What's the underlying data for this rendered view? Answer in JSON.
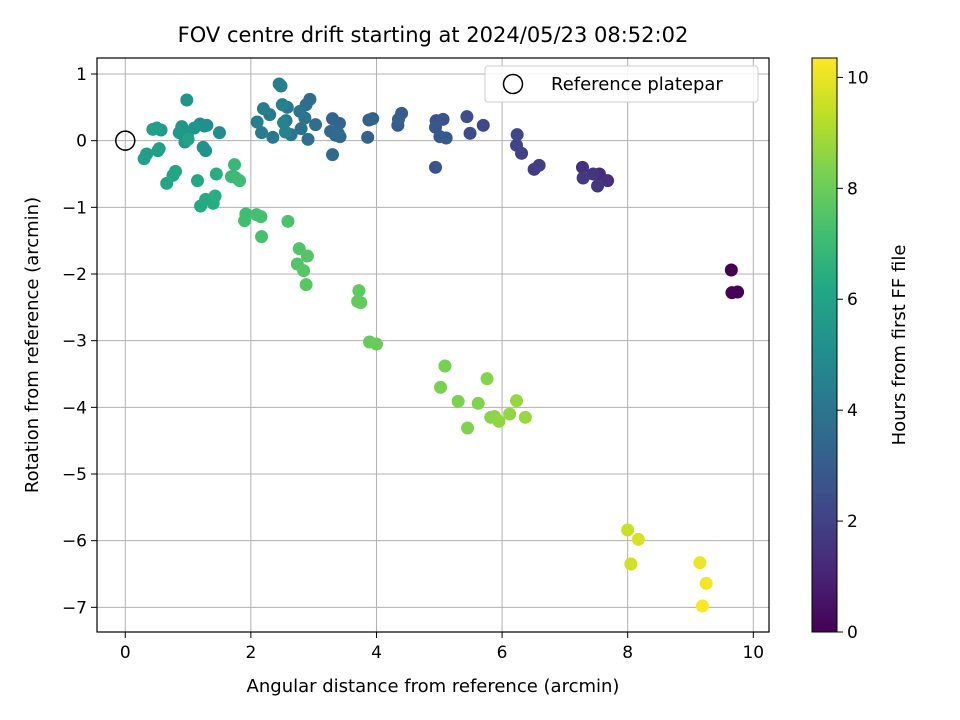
{
  "chart_data": {
    "type": "scatter",
    "title": "FOV centre drift starting at 2024/05/23 08:52:02",
    "xlabel": "Angular distance from reference (arcmin)",
    "ylabel": "Rotation from reference (arcmin)",
    "xlim": [
      -0.45,
      10.25
    ],
    "ylim": [
      -7.37,
      1.24
    ],
    "x_ticks": [
      0,
      2,
      4,
      6,
      8,
      10
    ],
    "y_ticks": [
      1,
      0,
      -1,
      -2,
      -3,
      -4,
      -5,
      -6,
      -7
    ],
    "x_tick_labels": [
      "0",
      "2",
      "4",
      "6",
      "8",
      "10"
    ],
    "y_tick_labels": [
      "1",
      "0",
      "−1",
      "−2",
      "−3",
      "−4",
      "−5",
      "−6",
      "−7"
    ],
    "grid": true,
    "legend": {
      "position": "top-right",
      "entries": [
        "Reference platepar"
      ]
    },
    "reference_point": {
      "x": 0,
      "y": 0,
      "label": "Reference platepar"
    },
    "colorbar": {
      "label": "Hours from first FF file",
      "colormap": "viridis",
      "range": [
        0,
        10.35
      ],
      "ticks": [
        0,
        2,
        4,
        6,
        8,
        10
      ],
      "tick_labels": [
        "0",
        "2",
        "4",
        "6",
        "8",
        "10"
      ]
    },
    "series": [
      {
        "x": [
          9.65,
          9.75,
          9.66,
          7.55,
          7.68,
          7.28,
          7.45,
          7.52,
          7.29,
          6.51,
          6.59,
          6.31,
          6.23,
          6.24,
          5.7,
          5.49,
          5.44,
          4.95,
          5.06,
          4.94,
          4.94,
          5.01,
          5.11,
          4.34,
          4.4,
          4.35,
          3.88,
          3.86,
          3.94,
          3.3,
          3.41,
          3.42,
          3.35,
          3.27,
          3.39,
          3.3,
          2.94,
          2.88,
          3.03,
          2.91,
          2.8,
          2.86,
          2.78,
          2.64,
          2.56,
          2.58,
          2.35,
          2.3,
          2.2,
          2.17,
          2.1,
          2.45,
          2.48,
          2.5,
          2.52,
          2.55,
          1.5,
          1.3,
          1.26,
          1.19,
          1.24,
          1.28,
          1.1,
          0.98,
          0.9,
          0.99,
          0.86,
          0.95,
          0.57,
          0.52,
          0.44,
          0.34,
          0.3,
          0.5,
          0.54,
          1.0,
          0.76,
          0.66,
          0.8,
          1.15,
          1.2,
          1.28,
          1.4,
          1.45,
          1.43,
          1.74,
          1.75,
          1.69,
          1.82,
          1.92,
          1.9,
          2.09,
          2.16,
          2.17,
          2.59,
          2.77,
          2.74,
          2.9,
          2.84,
          2.88,
          3.72,
          3.7,
          3.75,
          3.89,
          4.0,
          5.09,
          5.02,
          5.3,
          5.45,
          5.62,
          5.76,
          5.82,
          5.88,
          5.95,
          6.12,
          6.23,
          6.37,
          8.0,
          8.05,
          8.17,
          9.15,
          9.25,
          9.19
        ],
        "y": [
          -1.94,
          -2.27,
          -2.28,
          -0.5,
          -0.6,
          -0.4,
          -0.5,
          -0.68,
          -0.56,
          -0.43,
          -0.37,
          -0.19,
          -0.07,
          0.09,
          0.23,
          0.11,
          0.36,
          0.3,
          0.32,
          -0.4,
          0.2,
          0.06,
          0.04,
          0.23,
          0.41,
          0.32,
          0.31,
          0.05,
          0.33,
          0.33,
          0.26,
          0.06,
          0.08,
          0.14,
          0.11,
          -0.21,
          0.62,
          0.54,
          0.24,
          0.02,
          0.18,
          0.34,
          0.44,
          0.09,
          0.3,
          0.5,
          0.05,
          0.39,
          0.48,
          0.12,
          0.28,
          0.85,
          0.82,
          0.54,
          0.27,
          0.13,
          0.12,
          0.23,
          0.22,
          0.25,
          -0.1,
          -0.15,
          0.19,
          0.61,
          0.21,
          0.1,
          0.12,
          -0.02,
          0.16,
          -0.15,
          0.17,
          -0.2,
          -0.27,
          0.19,
          -0.12,
          0.02,
          -0.52,
          -0.64,
          -0.46,
          -0.6,
          -0.98,
          -0.88,
          -0.94,
          -0.5,
          -0.83,
          -0.36,
          -0.55,
          -0.54,
          -0.6,
          -1.1,
          -1.2,
          -1.11,
          -1.14,
          -1.44,
          -1.21,
          -1.62,
          -1.85,
          -1.73,
          -1.95,
          -2.16,
          -2.25,
          -2.41,
          -2.43,
          -3.02,
          -3.05,
          -3.38,
          -3.7,
          -3.91,
          -4.31,
          -3.94,
          -3.57,
          -4.15,
          -4.14,
          -4.21,
          -4.1,
          -3.9,
          -4.15,
          -5.84,
          -6.35,
          -5.98,
          -6.33,
          -6.64,
          -6.98
        ],
        "hours": [
          0.0,
          0.05,
          0.1,
          1.3,
          1.38,
          1.46,
          1.54,
          1.62,
          1.7,
          1.85,
          1.92,
          2.0,
          2.08,
          2.15,
          2.3,
          2.38,
          2.45,
          2.55,
          2.62,
          2.7,
          2.78,
          2.85,
          2.92,
          3.0,
          3.05,
          3.1,
          3.15,
          3.2,
          3.25,
          3.3,
          3.35,
          3.4,
          3.45,
          3.5,
          3.55,
          3.6,
          3.65,
          3.7,
          3.75,
          3.8,
          3.85,
          3.9,
          3.95,
          4.0,
          4.05,
          4.1,
          4.15,
          4.2,
          4.25,
          4.3,
          4.35,
          4.4,
          4.45,
          4.5,
          4.55,
          4.6,
          5.0,
          5.05,
          5.1,
          5.15,
          5.2,
          5.25,
          5.3,
          5.35,
          5.4,
          5.45,
          5.5,
          5.55,
          5.6,
          5.65,
          5.7,
          5.75,
          5.8,
          5.85,
          5.9,
          5.95,
          6.0,
          6.05,
          6.1,
          6.2,
          6.25,
          6.3,
          6.35,
          6.4,
          6.45,
          6.9,
          6.95,
          7.0,
          7.05,
          7.1,
          7.15,
          7.2,
          7.25,
          7.3,
          7.4,
          7.45,
          7.5,
          7.55,
          7.6,
          7.65,
          7.75,
          7.8,
          7.85,
          7.9,
          7.95,
          8.2,
          8.25,
          8.3,
          8.35,
          8.4,
          8.45,
          8.5,
          8.55,
          8.6,
          8.65,
          8.7,
          8.75,
          9.5,
          9.6,
          9.7,
          10.1,
          10.2,
          10.3
        ]
      }
    ]
  }
}
